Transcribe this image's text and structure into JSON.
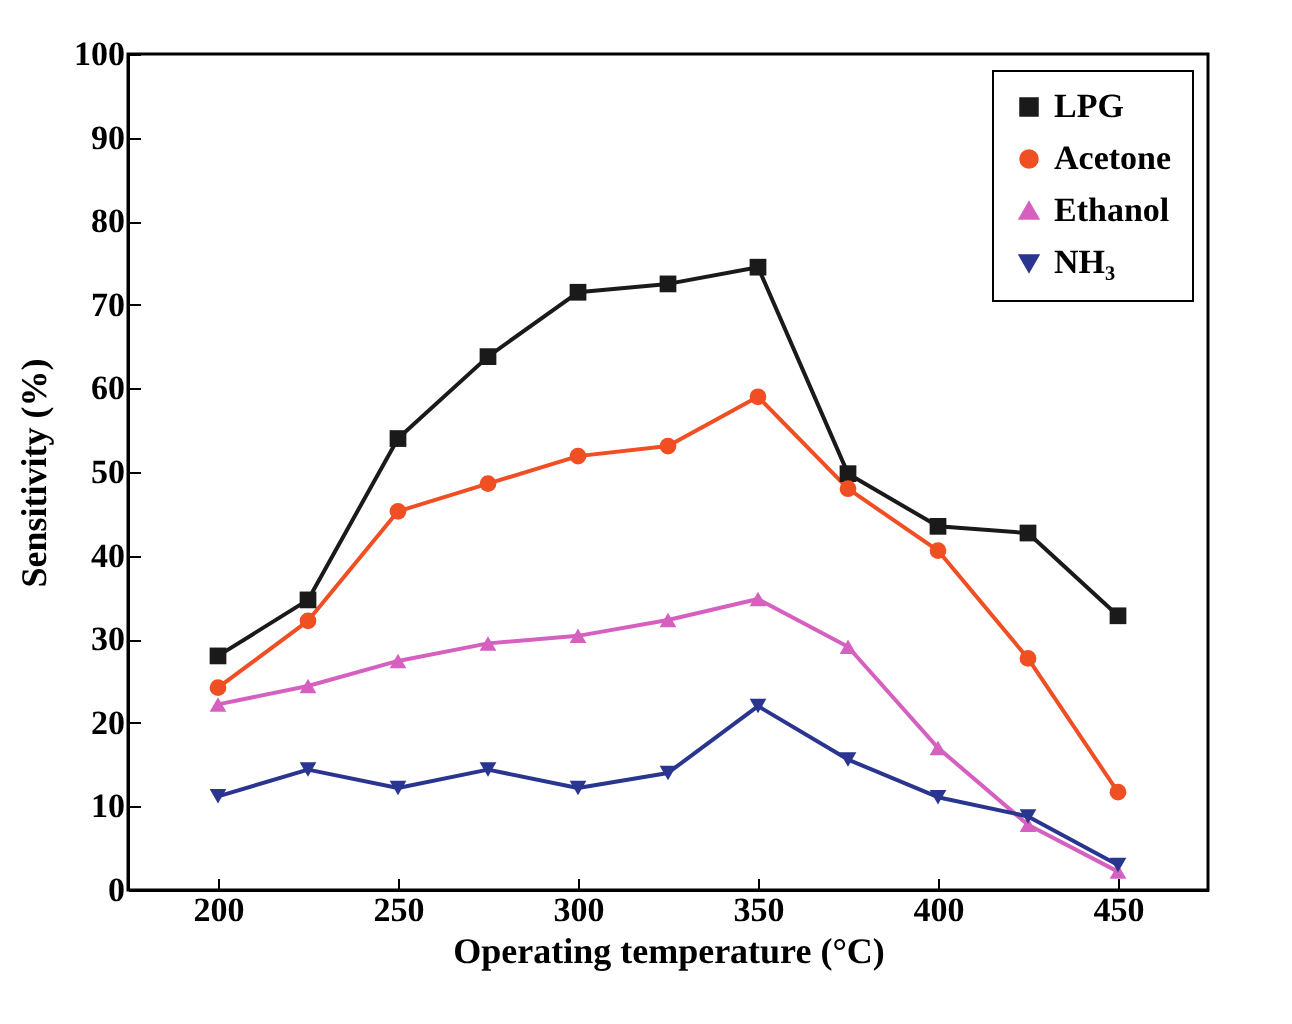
{
  "chart_data": {
    "type": "line",
    "xlabel": "Operating temperature (°C)",
    "ylabel": "Sensitivity (%)",
    "x": [
      200,
      225,
      250,
      275,
      300,
      325,
      350,
      375,
      400,
      425,
      450
    ],
    "xlim": [
      175,
      475
    ],
    "xticks": [
      200,
      250,
      300,
      350,
      400,
      450
    ],
    "ylim": [
      0,
      100
    ],
    "yticks": [
      0,
      10,
      20,
      30,
      40,
      50,
      60,
      70,
      80,
      90,
      100
    ],
    "legend": "top right",
    "line_style": "solid",
    "series": [
      {
        "name": "LPG",
        "color": "#1a1a1a",
        "marker": "square",
        "values": [
          28,
          34.7,
          54,
          63.8,
          71.5,
          72.5,
          74.5,
          49.8,
          43.5,
          42.7,
          32.8
        ]
      },
      {
        "name": "Acetone",
        "color": "#f04e23",
        "marker": "circle",
        "values": [
          24.2,
          32.2,
          45.3,
          48.6,
          51.9,
          53.1,
          59,
          48,
          40.6,
          27.7,
          11.7
        ]
      },
      {
        "name": "Ethanol",
        "color": "#d660c0",
        "marker": "triangle",
        "values": [
          22.2,
          24.4,
          27.4,
          29.5,
          30.4,
          32.3,
          34.8,
          29.1,
          17,
          7.8,
          2.2
        ]
      },
      {
        "name": "NH₃",
        "color": "#2a3590",
        "marker": "triangle-down",
        "values": [
          11.2,
          14.4,
          12.2,
          14.4,
          12.2,
          14,
          22,
          15.6,
          11.1,
          8.8,
          3
        ]
      }
    ]
  }
}
